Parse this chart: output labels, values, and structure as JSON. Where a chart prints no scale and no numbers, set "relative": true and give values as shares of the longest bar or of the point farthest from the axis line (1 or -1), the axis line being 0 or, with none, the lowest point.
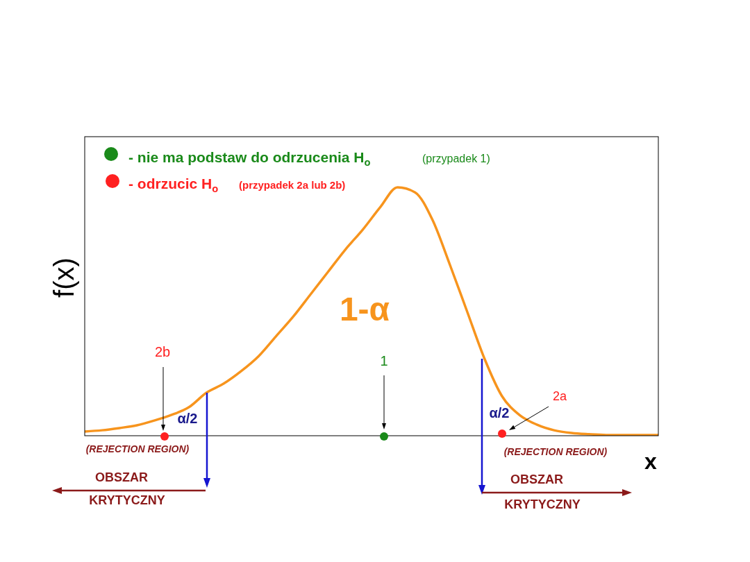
{
  "chart_data": {
    "type": "line",
    "relative": true,
    "xlabel": "x",
    "ylabel": "f(x)",
    "color": "#f7941d",
    "marker": "none",
    "categories": [
      null,
      null,
      null,
      null,
      null,
      null,
      null,
      null,
      null,
      null,
      null,
      null,
      null,
      null,
      null,
      null,
      null,
      null,
      null,
      null,
      null,
      null,
      null,
      null,
      null,
      null,
      null,
      null,
      null,
      null,
      null,
      null,
      null,
      null
    ],
    "values": [
      0.017,
      0.022,
      0.031,
      0.042,
      0.061,
      0.084,
      0.115,
      0.173,
      0.21,
      0.26,
      0.32,
      0.4,
      0.48,
      0.57,
      0.66,
      0.75,
      0.83,
      0.92,
      1,
      0.98,
      0.87,
      0.69,
      0.5,
      0.31,
      0.16,
      0.084,
      0.045,
      0.022,
      0.011,
      0.006,
      0.003,
      0.003,
      0.003,
      0.003
    ],
    "annotations": [
      "- nie ma podstaw do odrzucenia H$_{o}$",
      "(przypadek 1)",
      "- odrzucic H$_{o}$",
      "(przypadek 2a lub 2b)",
      "1-α",
      "2b",
      "1",
      "2a",
      "α/2",
      "α/2",
      "(REJECTION REGION)",
      "(REJECTION REGION)",
      "OBSZAR",
      "KRYTYCZNY",
      "OBSZAR",
      "KRYTYCZNY"
    ]
  }
}
